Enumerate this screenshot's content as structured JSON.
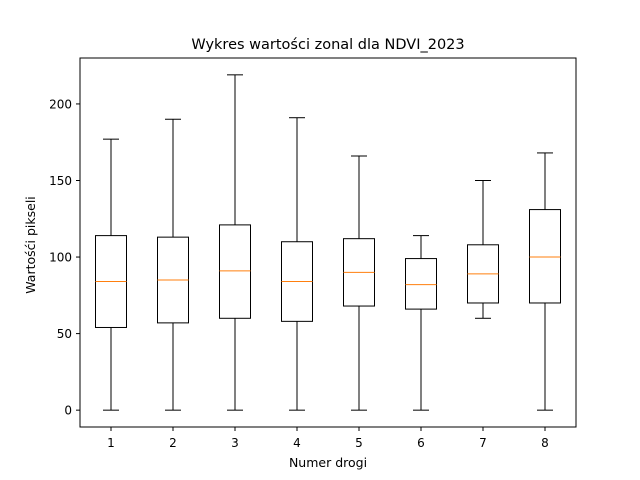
{
  "chart_data": {
    "type": "boxplot",
    "title": "Wykres wartości zonal dla NDVI_2023",
    "xlabel": "Numer drogi",
    "ylabel": "Wartośći pikseli",
    "categories": [
      "1",
      "2",
      "3",
      "4",
      "5",
      "6",
      "7",
      "8"
    ],
    "ylim": [
      -11,
      230
    ],
    "yticks": [
      0,
      50,
      100,
      150,
      200
    ],
    "grid": false,
    "colors": {
      "box": "#000000",
      "median": "#ff7f0e",
      "background": "#ffffff"
    },
    "series": [
      {
        "category": "1",
        "min": 0,
        "q1": 54,
        "median": 84,
        "q3": 114,
        "max": 177
      },
      {
        "category": "2",
        "min": 0,
        "q1": 57,
        "median": 85,
        "q3": 113,
        "max": 190
      },
      {
        "category": "3",
        "min": 0,
        "q1": 60,
        "median": 91,
        "q3": 121,
        "max": 219
      },
      {
        "category": "4",
        "min": 0,
        "q1": 58,
        "median": 84,
        "q3": 110,
        "max": 191
      },
      {
        "category": "5",
        "min": 0,
        "q1": 68,
        "median": 90,
        "q3": 112,
        "max": 166
      },
      {
        "category": "6",
        "min": 0,
        "q1": 66,
        "median": 82,
        "q3": 99,
        "max": 114
      },
      {
        "category": "7",
        "min": 60,
        "q1": 70,
        "median": 89,
        "q3": 108,
        "max": 150
      },
      {
        "category": "8",
        "min": 0,
        "q1": 70,
        "median": 100,
        "q3": 131,
        "max": 168
      }
    ]
  }
}
